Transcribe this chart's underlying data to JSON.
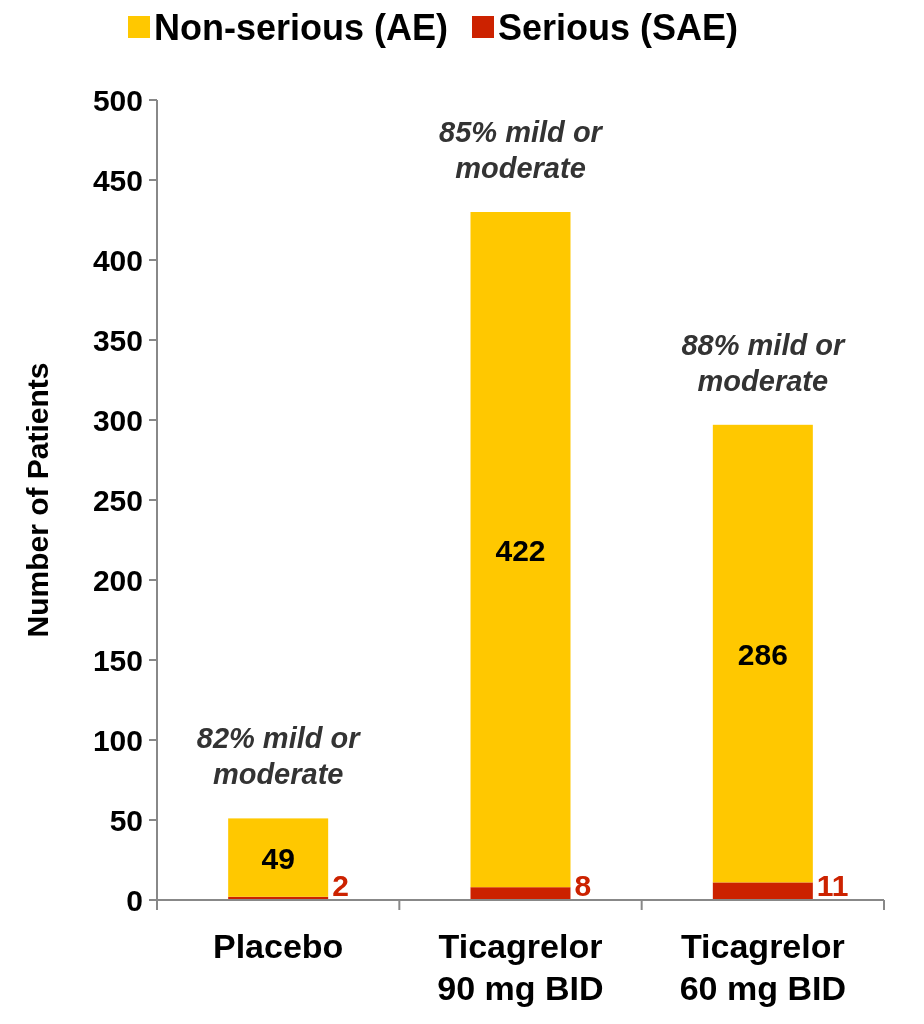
{
  "chart_data": {
    "type": "bar",
    "stacked": true,
    "ylabel": "Number of Patients",
    "categories": [
      "Placebo",
      "Ticagrelor 90 mg BID",
      "Ticagrelor 60 mg BID"
    ],
    "series": [
      {
        "name": "Serious (SAE)",
        "color": "#cc2200",
        "values": [
          2,
          8,
          11
        ]
      },
      {
        "name": "Non-serious (AE)",
        "color": "#ffc800",
        "values": [
          49,
          422,
          286
        ]
      }
    ],
    "ylim": [
      0,
      500
    ],
    "yticks": [
      0,
      50,
      100,
      150,
      200,
      250,
      300,
      350,
      400,
      450,
      500
    ],
    "grid": false,
    "legend": "top",
    "data_labels": true,
    "annotations": [
      "82% mild or moderate",
      "85% mild or moderate",
      "88% mild or moderate"
    ]
  }
}
